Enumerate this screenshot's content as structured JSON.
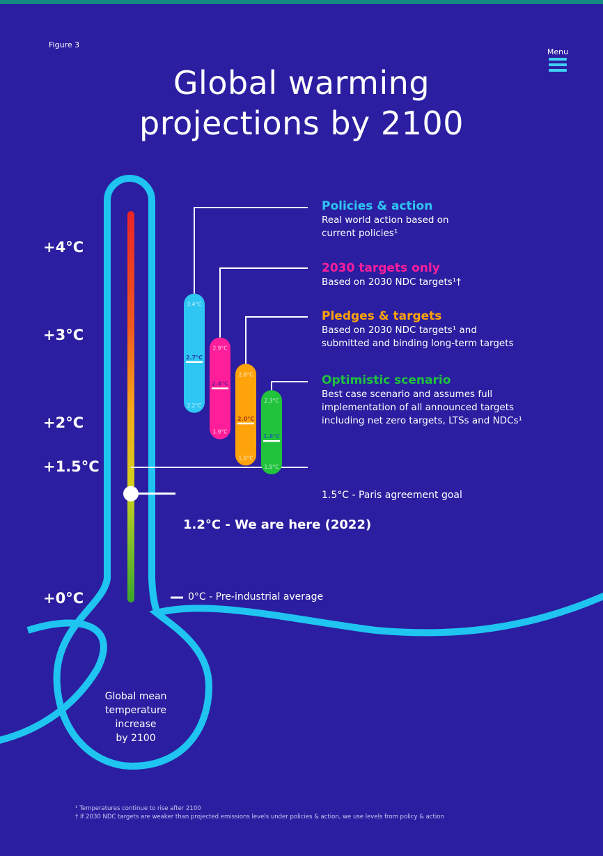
{
  "figure_label": "Figure 3",
  "title_line1": "Global warming",
  "title_line2": "projections by 2100",
  "menu_label": "Menu",
  "colors": {
    "background": "#2b1ea0",
    "outline": "#1fc4f0",
    "policies": "#2ec6f2",
    "targets_2030": "#ff1e9a",
    "pledges": "#ffa30a",
    "optimistic": "#21c33c"
  },
  "axis_labels": [
    "+4°C",
    "+3°C",
    "+2°C",
    "+1.5°C",
    "+0°C"
  ],
  "legend": [
    {
      "title": "Policies & action",
      "desc": [
        "Real world action based on",
        "current policies¹"
      ]
    },
    {
      "title": "2030 targets only",
      "desc": [
        "Based on 2030 NDC targets¹†"
      ]
    },
    {
      "title": "Pledges & targets",
      "desc": [
        "Based on 2030 NDC targets¹ and",
        "submitted and binding long-term targets"
      ]
    },
    {
      "title": "Optimistic scenario",
      "desc": [
        "Best case scenario and assumes full",
        "implementation of all announced targets",
        "including net zero targets, LTSs and NDCs¹"
      ]
    }
  ],
  "paris_label": "1.5°C - Paris agreement goal",
  "here_label": "1.2°C - We are here (2022)",
  "preindustrial_label": "0°C - Pre-industrial average",
  "bulb_text": [
    "Global mean",
    "temperature",
    "increase",
    "by 2100"
  ],
  "footnotes": [
    "¹ Temperatures continue to rise after 2100",
    "† If 2030 NDC targets are weaker than projected emissions levels under policies & action, we use levels from policy & action"
  ],
  "chart_data": {
    "type": "range",
    "unit": "°C",
    "ylim": [
      0,
      4.4
    ],
    "y_ticks": [
      0,
      1.5,
      2,
      3,
      4
    ],
    "current_warming": 1.2,
    "paris_goal": 1.5,
    "series": [
      {
        "name": "Policies & action",
        "low": 2.2,
        "mid": 2.7,
        "high": 3.4,
        "labels": [
          "3.4°C",
          "2.7°C",
          "2.2°C"
        ]
      },
      {
        "name": "2030 targets only",
        "low": 1.9,
        "mid": 2.4,
        "high": 2.9,
        "labels": [
          "2.9°C",
          "2.4°C",
          "1.9°C"
        ]
      },
      {
        "name": "Pledges & targets",
        "low": 1.6,
        "mid": 2.0,
        "high": 2.6,
        "labels": [
          "2.6°C",
          "2.0°C",
          "1.6°C"
        ]
      },
      {
        "name": "Optimistic scenario",
        "low": 1.5,
        "mid": 1.8,
        "high": 2.3,
        "labels": [
          "2.3°C",
          "1.8°C",
          "1.5°C"
        ]
      }
    ]
  }
}
